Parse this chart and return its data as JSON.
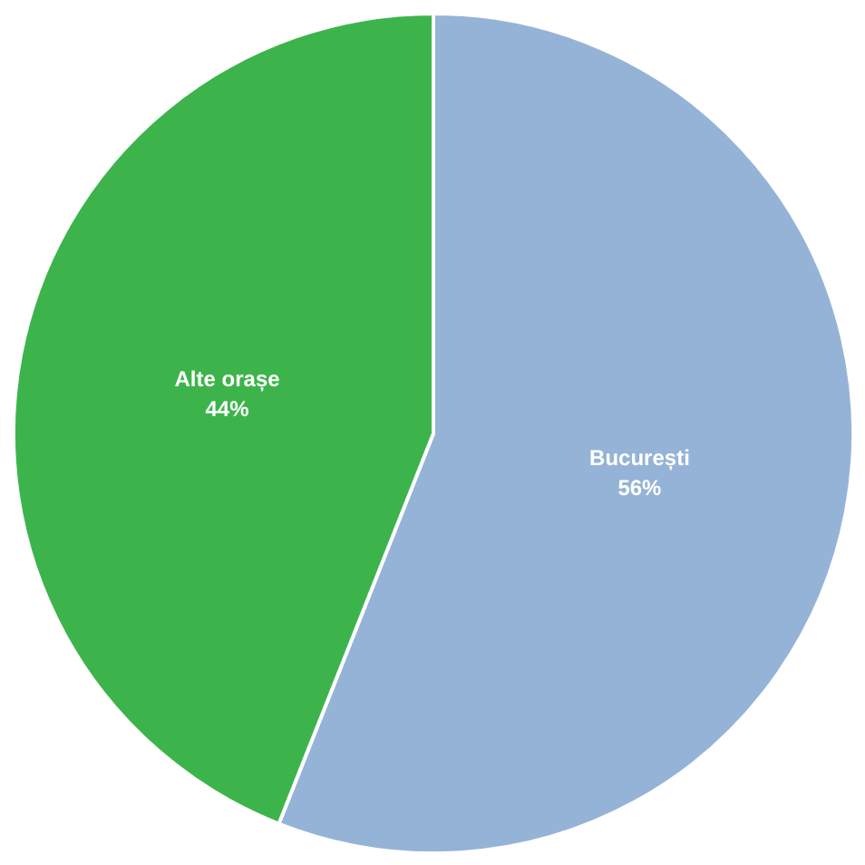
{
  "chart_data": {
    "type": "pie",
    "categories": [
      "București",
      "Alte orașe"
    ],
    "values": [
      56,
      44
    ],
    "colors": [
      "#95b3d7",
      "#3cb44b"
    ],
    "value_labels": [
      "56%",
      "44%"
    ]
  }
}
